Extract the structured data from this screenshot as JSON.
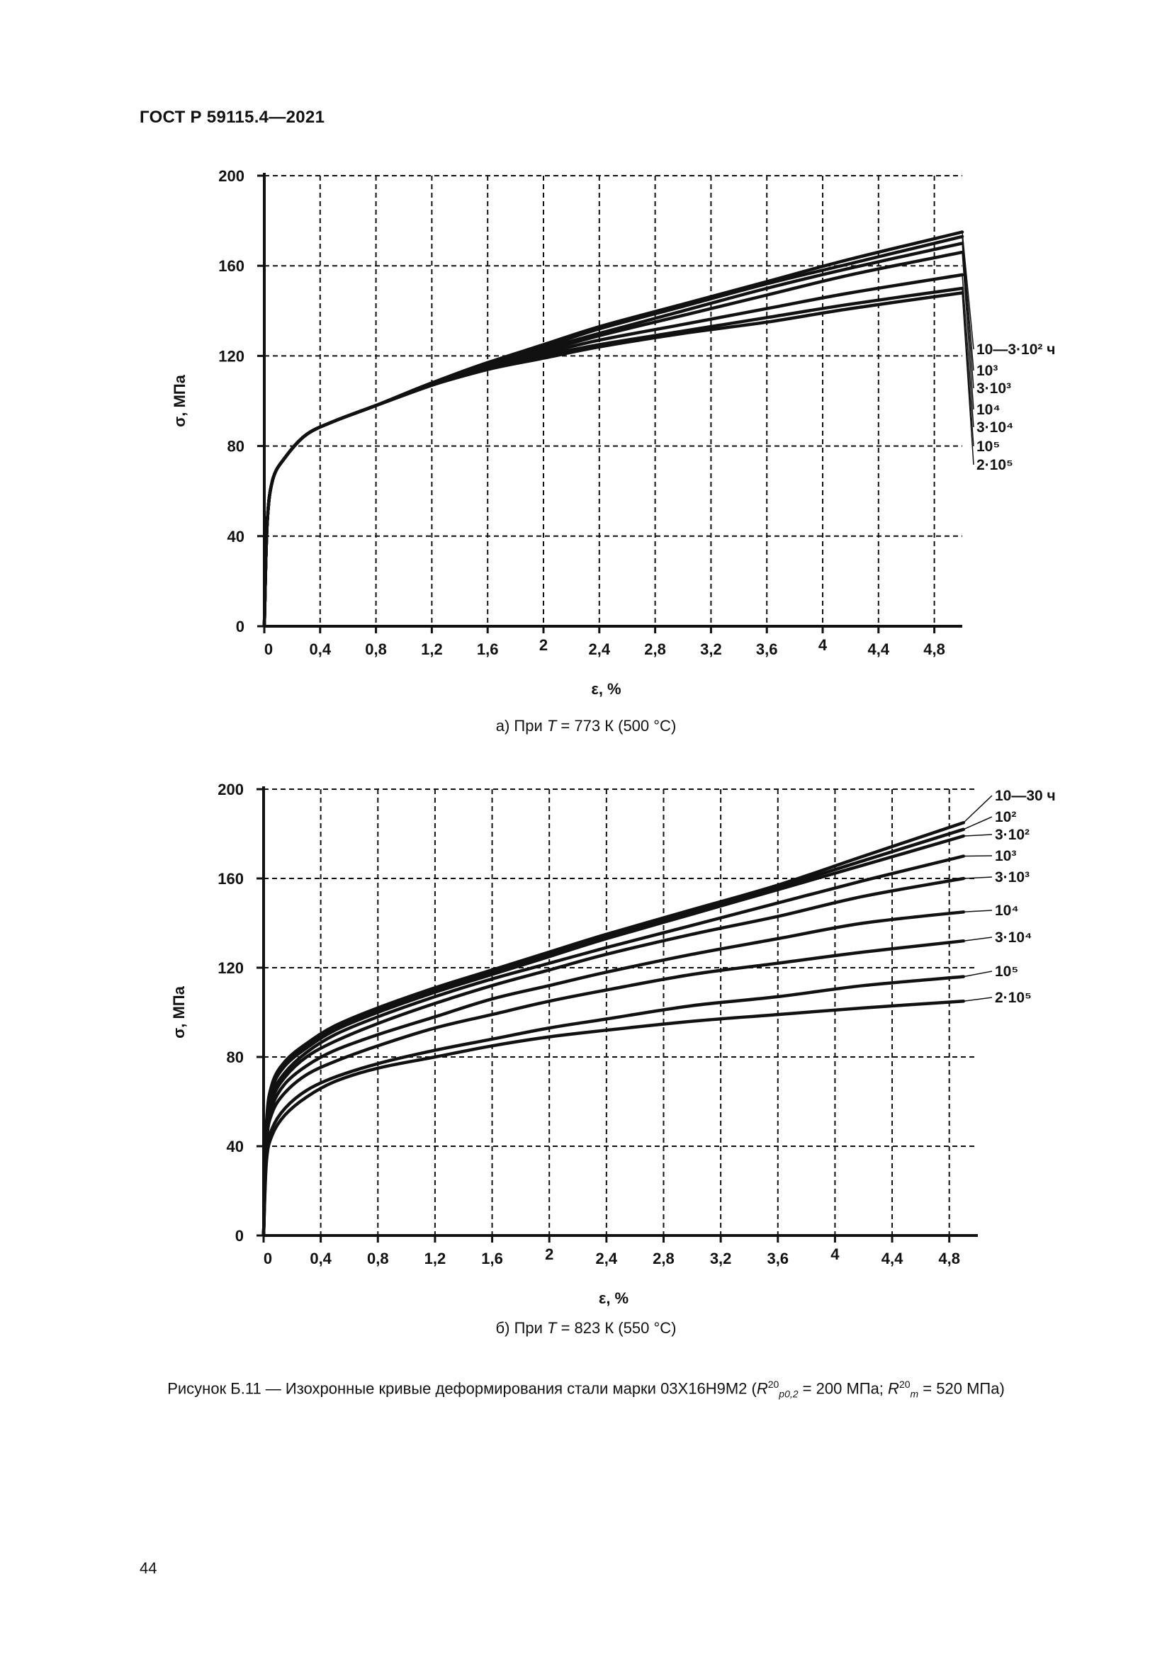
{
  "document": {
    "header": "ГОСТ Р 59115.4—2021",
    "page_number": "44",
    "figure_caption": {
      "prefix": "Рисунок Б.11 — Изохронные кривые деформирования стали марки 03Х16Н9М2 (",
      "r1_main": "R",
      "r1_sup": "20",
      "r1_sub": "p0,2",
      "r1_value": " = 200 МПа; ",
      "r2_main": "R",
      "r2_sup": "20",
      "r2_sub": "m",
      "r2_value": " = 520 МПа)"
    }
  },
  "chart_data": [
    {
      "type": "line",
      "subcaption_prefix": "а) При ",
      "subcaption_var": "T",
      "subcaption_rest": " = 773 К (500 °С)",
      "xlabel": "ε, %",
      "ylabel": "σ, МПа",
      "xlim": [
        0,
        5.0
      ],
      "ylim": [
        0,
        200
      ],
      "x_ticks": [
        "0",
        "0,4",
        "0,8",
        "1,2",
        "1,6",
        "2",
        "2,4",
        "2,8",
        "3,2",
        "3,6",
        "4",
        "4,4",
        "4,8"
      ],
      "y_ticks": [
        "0",
        "40",
        "80",
        "120",
        "160",
        "200"
      ],
      "grid": true,
      "series": [
        {
          "name": "10—3·10² ч",
          "x": [
            0,
            0.02,
            0.06,
            0.15,
            0.3,
            0.5,
            0.8,
            1.2,
            1.6,
            2.0,
            2.4,
            3.0,
            3.6,
            4.2,
            5.0
          ],
          "y": [
            0,
            45,
            65,
            75,
            85,
            91,
            98,
            108,
            117,
            125,
            133,
            143,
            153,
            163,
            175
          ]
        },
        {
          "name": "10³",
          "x": [
            0,
            0.02,
            0.06,
            0.15,
            0.3,
            0.5,
            0.8,
            1.2,
            1.6,
            2.0,
            2.4,
            3.0,
            3.6,
            4.2,
            5.0
          ],
          "y": [
            0,
            45,
            65,
            75,
            85,
            91,
            98,
            108,
            117,
            124,
            132,
            142,
            152,
            161,
            173
          ]
        },
        {
          "name": "3·10³",
          "x": [
            0,
            0.02,
            0.06,
            0.15,
            0.3,
            0.5,
            0.8,
            1.2,
            1.6,
            2.0,
            2.4,
            3.0,
            3.6,
            4.2,
            5.0
          ],
          "y": [
            0,
            45,
            65,
            75,
            85,
            91,
            98,
            108,
            116,
            123,
            130,
            140,
            150,
            159,
            170
          ]
        },
        {
          "name": "10⁴",
          "x": [
            0,
            0.02,
            0.06,
            0.15,
            0.3,
            0.5,
            0.8,
            1.2,
            1.6,
            2.0,
            2.4,
            3.0,
            3.6,
            4.2,
            5.0
          ],
          "y": [
            0,
            45,
            65,
            75,
            85,
            91,
            98,
            107,
            115,
            122,
            129,
            138,
            147,
            156,
            166
          ]
        },
        {
          "name": "3·10⁴",
          "x": [
            0,
            0.02,
            0.06,
            0.15,
            0.3,
            0.5,
            0.8,
            1.2,
            1.6,
            2.0,
            2.4,
            3.0,
            3.6,
            4.2,
            5.0
          ],
          "y": [
            0,
            45,
            65,
            75,
            85,
            91,
            98,
            107,
            115,
            121,
            127,
            134,
            141,
            148,
            156
          ]
        },
        {
          "name": "10⁵",
          "x": [
            0,
            0.02,
            0.06,
            0.15,
            0.3,
            0.5,
            0.8,
            1.2,
            1.6,
            2.0,
            2.4,
            3.0,
            3.6,
            4.2,
            5.0
          ],
          "y": [
            0,
            45,
            65,
            75,
            85,
            91,
            98,
            107,
            114,
            120,
            125,
            131,
            137,
            143,
            150
          ]
        },
        {
          "name": "2·10⁵",
          "x": [
            0,
            0.02,
            0.06,
            0.15,
            0.3,
            0.5,
            0.8,
            1.2,
            1.6,
            2.0,
            2.4,
            3.0,
            3.6,
            4.2,
            5.0
          ],
          "y": [
            0,
            45,
            65,
            75,
            85,
            91,
            98,
            107,
            114,
            119,
            124,
            130,
            135,
            141,
            148
          ]
        }
      ]
    },
    {
      "type": "line",
      "subcaption_prefix": "б) При ",
      "subcaption_var": "T",
      "subcaption_rest": " = 823 К (550 °С)",
      "xlabel": "ε, %",
      "ylabel": "σ, МПа",
      "xlim": [
        0,
        5.0
      ],
      "ylim": [
        0,
        200
      ],
      "x_ticks": [
        "0",
        "0,4",
        "0,8",
        "1,2",
        "1,6",
        "2",
        "2,4",
        "2,8",
        "3,2",
        "3,6",
        "4",
        "4,4",
        "4,8"
      ],
      "y_ticks": [
        "0",
        "40",
        "80",
        "120",
        "160",
        "200"
      ],
      "grid": true,
      "series": [
        {
          "name": "10—30 ч",
          "x": [
            0,
            0.02,
            0.06,
            0.15,
            0.3,
            0.5,
            0.8,
            1.2,
            1.6,
            2.0,
            2.4,
            3.0,
            3.6,
            4.2,
            4.9
          ],
          "y": [
            0,
            50,
            68,
            78,
            86,
            94,
            102,
            111,
            119,
            127,
            135,
            146,
            157,
            170,
            185
          ]
        },
        {
          "name": "10²",
          "x": [
            0,
            0.02,
            0.06,
            0.15,
            0.3,
            0.5,
            0.8,
            1.2,
            1.6,
            2.0,
            2.4,
            3.0,
            3.6,
            4.2,
            4.9
          ],
          "y": [
            0,
            49,
            67,
            77,
            85,
            93,
            101,
            110,
            118,
            126,
            134,
            145,
            156,
            168,
            182
          ]
        },
        {
          "name": "3·10²",
          "x": [
            0,
            0.02,
            0.06,
            0.15,
            0.3,
            0.5,
            0.8,
            1.2,
            1.6,
            2.0,
            2.4,
            3.0,
            3.6,
            4.2,
            4.9
          ],
          "y": [
            0,
            48,
            66,
            76,
            84,
            92,
            100,
            109,
            117,
            125,
            133,
            144,
            155,
            166,
            179
          ]
        },
        {
          "name": "10³",
          "x": [
            0,
            0.02,
            0.06,
            0.15,
            0.3,
            0.5,
            0.8,
            1.2,
            1.6,
            2.0,
            2.4,
            3.0,
            3.6,
            4.2,
            4.9
          ],
          "y": [
            0,
            46,
            63,
            73,
            82,
            90,
            98,
            107,
            115,
            122,
            129,
            139,
            149,
            159,
            170
          ]
        },
        {
          "name": "3·10³",
          "x": [
            0,
            0.02,
            0.06,
            0.15,
            0.3,
            0.5,
            0.8,
            1.2,
            1.6,
            2.0,
            2.4,
            3.0,
            3.6,
            4.2,
            4.9
          ],
          "y": [
            0,
            45,
            61,
            71,
            80,
            87,
            95,
            104,
            112,
            119,
            126,
            135,
            143,
            152,
            160
          ]
        },
        {
          "name": "10⁴",
          "x": [
            0,
            0.02,
            0.06,
            0.15,
            0.3,
            0.5,
            0.8,
            1.2,
            1.6,
            2.0,
            2.4,
            3.0,
            3.6,
            4.2,
            4.9
          ],
          "y": [
            0,
            43,
            58,
            68,
            76,
            83,
            90,
            98,
            106,
            112,
            118,
            126,
            133,
            140,
            145
          ]
        },
        {
          "name": "3·10⁴",
          "x": [
            0,
            0.02,
            0.06,
            0.15,
            0.3,
            0.5,
            0.8,
            1.2,
            1.6,
            2.0,
            2.4,
            3.0,
            3.6,
            4.2,
            4.9
          ],
          "y": [
            0,
            41,
            55,
            64,
            72,
            78,
            85,
            93,
            99,
            105,
            110,
            117,
            122,
            127,
            132
          ]
        },
        {
          "name": "10⁵",
          "x": [
            0,
            0.02,
            0.06,
            0.15,
            0.3,
            0.5,
            0.8,
            1.2,
            1.6,
            2.0,
            2.4,
            3.0,
            3.6,
            4.2,
            4.9
          ],
          "y": [
            0,
            36,
            48,
            57,
            65,
            71,
            77,
            83,
            88,
            93,
            97,
            103,
            107,
            112,
            116
          ]
        },
        {
          "name": "2·10⁵",
          "x": [
            0,
            0.02,
            0.06,
            0.15,
            0.3,
            0.5,
            0.8,
            1.2,
            1.6,
            2.0,
            2.4,
            3.0,
            3.6,
            4.2,
            4.9
          ],
          "y": [
            0,
            33,
            45,
            54,
            62,
            69,
            75,
            80,
            85,
            89,
            92,
            96,
            99,
            102,
            105
          ]
        }
      ]
    }
  ]
}
